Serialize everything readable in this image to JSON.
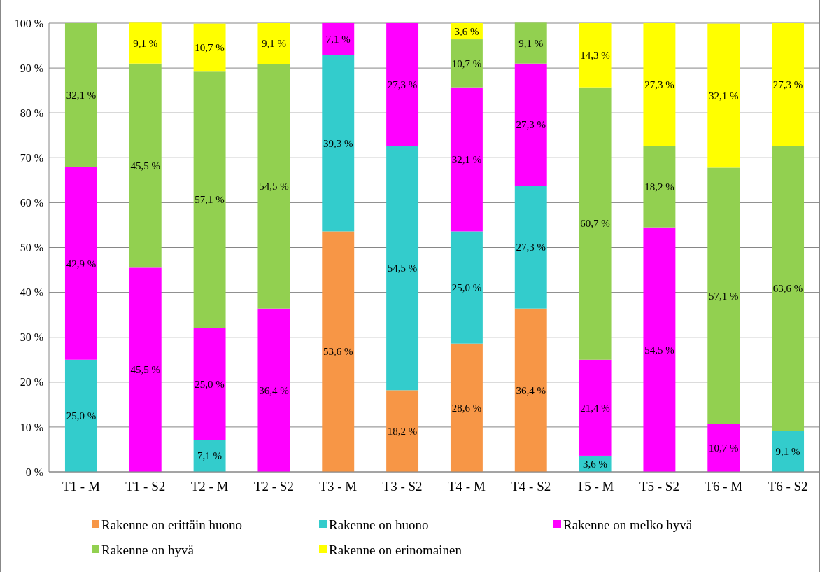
{
  "chart_data": {
    "type": "bar",
    "stacked": true,
    "categories": [
      "T1 - M",
      "T1 - S2",
      "T2 - M",
      "T2 - S2",
      "T3 - M",
      "T3 - S2",
      "T4 - M",
      "T4 - S2",
      "T5 - M",
      "T5 - S2",
      "T6 - M",
      "T6 - S2"
    ],
    "series": [
      {
        "name": "Rakenne on erittäin huono",
        "color": "#f79646",
        "values": [
          null,
          null,
          null,
          null,
          53.6,
          18.2,
          28.6,
          36.4,
          null,
          null,
          null,
          null
        ],
        "value_labels": [
          null,
          null,
          null,
          null,
          "53,6 %",
          "18,2 %",
          "28,6 %",
          "36,4 %",
          null,
          null,
          null,
          null
        ]
      },
      {
        "name": "Rakenne on huono",
        "color": "#33cccc",
        "values": [
          25.0,
          null,
          7.1,
          null,
          39.3,
          54.5,
          25.0,
          27.3,
          3.6,
          null,
          null,
          9.1
        ],
        "value_labels": [
          "25,0 %",
          null,
          "7,1 %",
          null,
          "39,3 %",
          "54,5 %",
          "25,0 %",
          "27,3 %",
          "3,6 %",
          null,
          null,
          "9,1 %"
        ]
      },
      {
        "name": "Rakenne on melko hyvä",
        "color": "#ff00ff",
        "values": [
          42.9,
          45.5,
          25.0,
          36.4,
          7.1,
          27.3,
          32.1,
          27.3,
          21.4,
          54.5,
          10.7,
          null
        ],
        "value_labels": [
          "42,9 %",
          "45,5 %",
          "25,0 %",
          "36,4 %",
          "7,1 %",
          "27,3 %",
          "32,1 %",
          "27,3 %",
          "21,4 %",
          "54,5 %",
          "10,7 %",
          null
        ]
      },
      {
        "name": "Rakenne on hyvä",
        "color": "#92d050",
        "values": [
          32.1,
          45.5,
          57.1,
          54.5,
          null,
          null,
          10.7,
          9.1,
          60.7,
          18.2,
          57.1,
          63.6
        ],
        "value_labels": [
          "32,1 %",
          "45,5 %",
          "57,1 %",
          "54,5 %",
          null,
          null,
          "10,7 %",
          "9,1 %",
          "60,7 %",
          "18,2 %",
          "57,1 %",
          "63,6 %"
        ]
      },
      {
        "name": "Rakenne on erinomainen",
        "color": "#ffff00",
        "values": [
          null,
          9.1,
          10.7,
          9.1,
          null,
          null,
          3.6,
          null,
          14.3,
          27.3,
          32.1,
          27.3
        ],
        "value_labels": [
          null,
          "9,1 %",
          "10,7 %",
          "9,1 %",
          null,
          null,
          "3,6 %",
          null,
          "14,3 %",
          "27,3 %",
          "32,1 %",
          "27,3 %"
        ]
      }
    ],
    "ylim": [
      0,
      100
    ],
    "yticks": [
      {
        "value": 0,
        "label": "0 %"
      },
      {
        "value": 10,
        "label": "10 %"
      },
      {
        "value": 20,
        "label": "20 %"
      },
      {
        "value": 30,
        "label": "30 %"
      },
      {
        "value": 40,
        "label": "40 %"
      },
      {
        "value": 50,
        "label": "50 %"
      },
      {
        "value": 60,
        "label": "60 %"
      },
      {
        "value": 70,
        "label": "70 %"
      },
      {
        "value": 80,
        "label": "80 %"
      },
      {
        "value": 90,
        "label": "90 %"
      },
      {
        "value": 100,
        "label": "100 %"
      }
    ],
    "grid": "y",
    "legend": "bottom"
  }
}
